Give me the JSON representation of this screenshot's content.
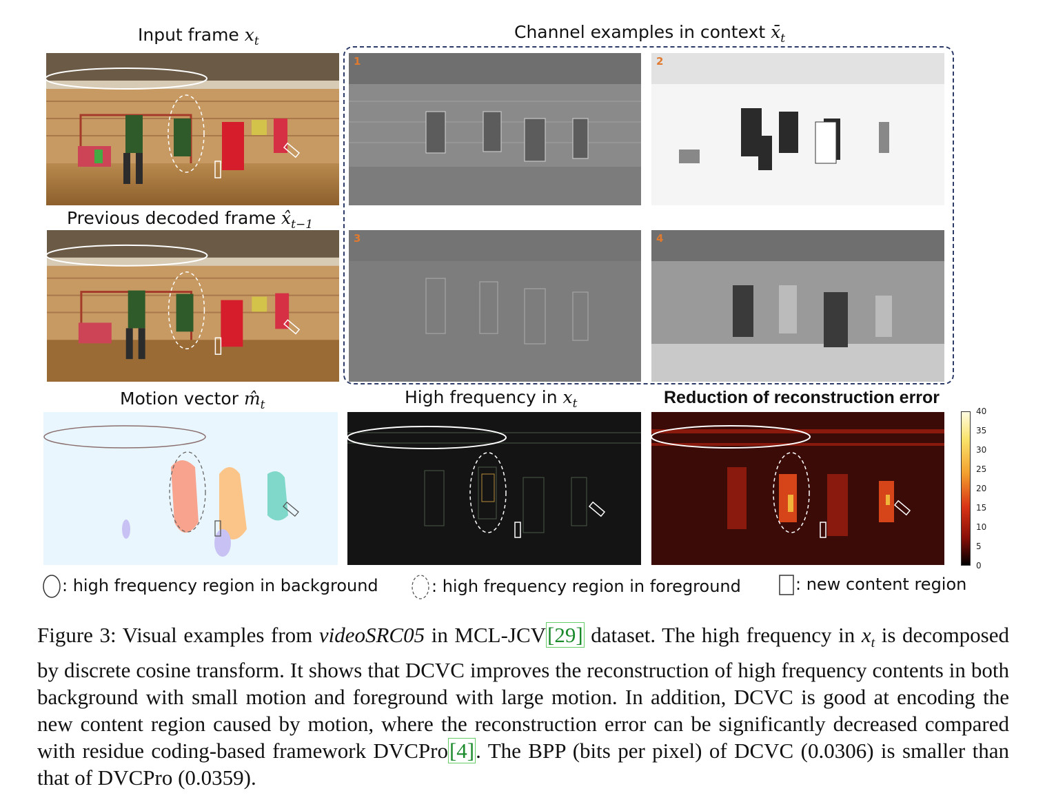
{
  "figure": {
    "titles": {
      "input_frame": "Input frame",
      "input_frame_var": "x",
      "input_frame_sub": "t",
      "prev_frame": "Previous decoded frame",
      "prev_frame_var": "x̂",
      "prev_frame_sub": "t−1",
      "context": "Channel examples in context",
      "context_var": "x̄",
      "context_sub": "t",
      "motion": "Motion vector",
      "motion_var": "m̂",
      "motion_sub": "t",
      "high_freq": "High frequency in",
      "high_freq_var": "x",
      "high_freq_sub": "t",
      "reduction": "Reduction of reconstruction error"
    },
    "channel_numbers": [
      "1",
      "2",
      "3",
      "4"
    ],
    "colorbar_ticks": [
      "40",
      "35",
      "30",
      "25",
      "20",
      "15",
      "10",
      "5",
      "0"
    ],
    "legend": {
      "background": ": high frequency region in background",
      "foreground": ": high frequency region in foreground",
      "new_content": ": new content region"
    }
  },
  "caption": {
    "p1": "Figure 3: Visual examples from ",
    "dataset_name": "videoSRC05",
    "p2": " in MCL-JCV",
    "cite1": "[29]",
    "p3": " dataset. The high frequency in ",
    "var": "x",
    "var_sub": "t",
    "p4": " is decomposed by discrete cosine transform. It shows that DCVC improves the reconstruction of high frequency contents in both background with small motion and foreground with large motion. In addition, DCVC is good at encoding the new content region caused by motion, where the reconstruction error can be significantly decreased compared with residue coding-based framework DVCPro",
    "cite2": "[4]",
    "p5": ". The BPP (bits per pixel) of DCVC (0.0306) is smaller than that of DVCPro (0.0359)."
  }
}
